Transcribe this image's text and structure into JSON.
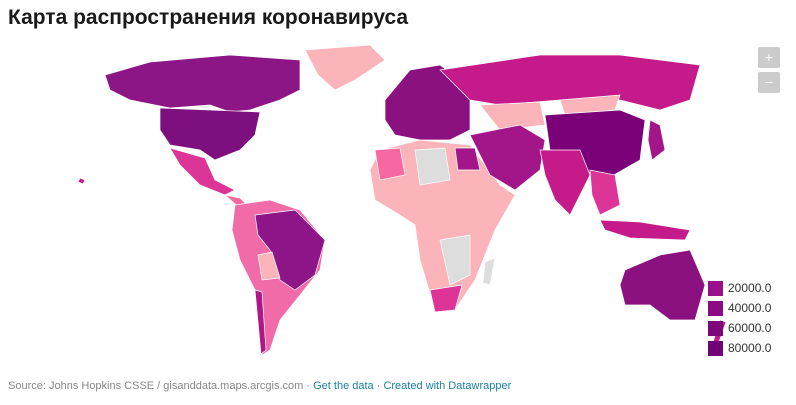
{
  "header": {
    "title": "Карта распространения коронавируса"
  },
  "zoom": {
    "in": "+",
    "out": "−"
  },
  "legend": {
    "items": [
      "20000.0",
      "40000.0",
      "60000.0",
      "80000.0"
    ]
  },
  "footer": {
    "source": "Source: Johns Hopkins CSSE / gisanddata.maps.arcgis.com",
    "separator": "·",
    "get_data": "Get the data",
    "created": "Created with Datawrapper"
  }
}
